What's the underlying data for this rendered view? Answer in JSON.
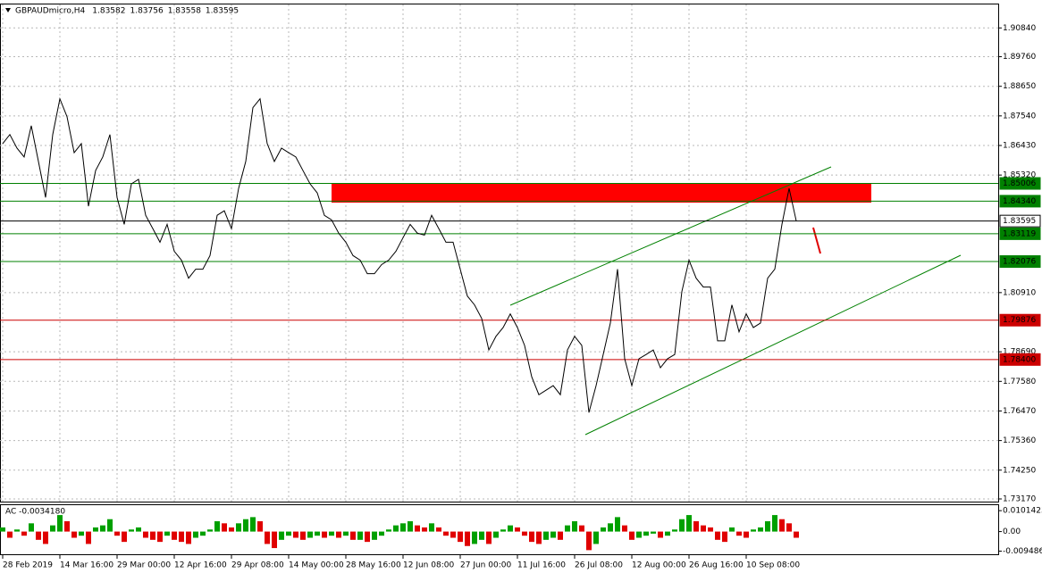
{
  "chart_data": [
    {
      "type": "line",
      "symbol": "GBPAUDmicro,H4",
      "ohlc": [
        1.83582,
        1.83756,
        1.83558,
        1.83595
      ],
      "color": "#000000",
      "grid": true,
      "categories": [
        "28 Feb 2019",
        null,
        null,
        null,
        null,
        null,
        null,
        null,
        "14 Mar 16:00",
        null,
        null,
        null,
        null,
        null,
        null,
        null,
        "29 Mar 00:00",
        null,
        null,
        null,
        null,
        null,
        null,
        null,
        "12 Apr 16:00",
        null,
        null,
        null,
        null,
        null,
        null,
        null,
        "29 Apr 08:00",
        null,
        null,
        null,
        null,
        null,
        null,
        null,
        "14 May 00:00",
        null,
        null,
        null,
        null,
        null,
        null,
        null,
        "28 May 16:00",
        null,
        null,
        null,
        null,
        null,
        null,
        null,
        "12 Jun 08:00",
        null,
        null,
        null,
        null,
        null,
        null,
        null,
        "27 Jun 00:00",
        null,
        null,
        null,
        null,
        null,
        null,
        null,
        "11 Jul 16:00",
        null,
        null,
        null,
        null,
        null,
        null,
        null,
        "26 Jul 08:00",
        null,
        null,
        null,
        null,
        null,
        null,
        null,
        "12 Aug 00:00",
        null,
        null,
        null,
        null,
        null,
        null,
        null,
        "26 Aug 16:00",
        null,
        null,
        null,
        null,
        null,
        null,
        null,
        "10 Sep 08:00",
        null,
        null,
        null,
        null,
        null,
        null,
        null
      ],
      "values": [
        1.865,
        1.8684,
        1.8633,
        1.86,
        1.8717,
        1.8583,
        1.8448,
        1.8684,
        1.8818,
        1.8751,
        1.8616,
        1.865,
        1.8415,
        1.8549,
        1.86,
        1.8684,
        1.8448,
        1.8347,
        1.8499,
        1.8516,
        1.8381,
        1.8331,
        1.828,
        1.8347,
        1.8246,
        1.8213,
        1.8145,
        1.8179,
        1.8179,
        1.823,
        1.8381,
        1.8398,
        1.8331,
        1.8482,
        1.8583,
        1.8785,
        1.8818,
        1.865,
        1.8583,
        1.8633,
        1.8616,
        1.86,
        1.8549,
        1.8499,
        1.8465,
        1.8381,
        1.8364,
        1.8314,
        1.828,
        1.823,
        1.8213,
        1.8162,
        1.8162,
        1.8196,
        1.8213,
        1.8246,
        1.8297,
        1.8347,
        1.8314,
        1.8307,
        1.8381,
        1.8331,
        1.828,
        1.828,
        1.8179,
        1.8078,
        1.8045,
        1.7994,
        1.7876,
        1.7927,
        1.796,
        1.8011,
        1.796,
        1.7893,
        1.7775,
        1.7708,
        1.7725,
        1.7742,
        1.7708,
        1.7876,
        1.7927,
        1.7893,
        1.7641,
        1.7742,
        1.7859,
        1.7977,
        1.8179,
        1.7843,
        1.7742,
        1.7843,
        1.7859,
        1.7876,
        1.7809,
        1.7843,
        1.7859,
        1.8095,
        1.8213,
        1.8145,
        1.8112,
        1.8112,
        1.791,
        1.791,
        1.8045,
        1.7944,
        1.8011,
        1.796,
        1.7977,
        1.8145,
        1.8179,
        1.8347,
        1.8482,
        1.836
      ],
      "ylim": [
        1.7307,
        1.9172
      ],
      "yticks": [
        {
          "value": 1.9084,
          "label": "1.90840"
        },
        {
          "value": 1.8976,
          "label": "1.89760"
        },
        {
          "value": 1.8865,
          "label": "1.88650"
        },
        {
          "value": 1.8754,
          "label": "1.87540"
        },
        {
          "value": 1.8643,
          "label": "1.86430"
        },
        {
          "value": 1.8532,
          "label": "1.85320"
        },
        {
          "value": 1.8091,
          "label": "1.80910"
        },
        {
          "value": 1.7869,
          "label": "1.78690"
        },
        {
          "value": 1.7758,
          "label": "1.77580"
        },
        {
          "value": 1.7647,
          "label": "1.76470"
        },
        {
          "value": 1.7536,
          "label": "1.75360"
        },
        {
          "value": 1.7425,
          "label": "1.74250"
        },
        {
          "value": 1.7317,
          "label": "1.73170"
        }
      ],
      "levels": [
        {
          "value": 1.85006,
          "label": "1.85006",
          "color": "#008000"
        },
        {
          "value": 1.8434,
          "label": "1.84340",
          "color": "#008000"
        },
        {
          "value": 1.83595,
          "label": "1.83595",
          "color": "#000000"
        },
        {
          "value": 1.83119,
          "label": "1.83119",
          "color": "#008000"
        },
        {
          "value": 1.82076,
          "label": "1.82076",
          "color": "#008000"
        },
        {
          "value": 1.79876,
          "label": "1.79876",
          "color": "#cc0000"
        },
        {
          "value": 1.784,
          "label": "1.78400",
          "color": "#cc0000"
        }
      ]
    },
    {
      "type": "bar",
      "title": "AC -0.0034180",
      "up_color": "#00a000",
      "down_color": "#e00000",
      "values": [
        0.002,
        -0.003,
        0.001,
        -0.002,
        0.004,
        -0.004,
        -0.006,
        0.003,
        0.008,
        0.005,
        -0.003,
        -0.002,
        -0.006,
        0.002,
        0.003,
        0.006,
        -0.002,
        -0.005,
        0.001,
        0.002,
        -0.003,
        -0.004,
        -0.005,
        -0.002,
        -0.004,
        -0.005,
        -0.006,
        -0.003,
        -0.002,
        0.001,
        0.005,
        0.004,
        0.002,
        0.004,
        0.006,
        0.007,
        0.005,
        -0.006,
        -0.008,
        -0.004,
        -0.002,
        -0.003,
        -0.004,
        -0.003,
        -0.002,
        -0.003,
        -0.002,
        -0.003,
        -0.002,
        -0.004,
        -0.004,
        -0.005,
        -0.004,
        -0.002,
        0.001,
        0.003,
        0.004,
        0.005,
        0.003,
        0.002,
        0.004,
        0.002,
        -0.002,
        -0.003,
        -0.005,
        -0.007,
        -0.006,
        -0.004,
        -0.006,
        -0.003,
        0.001,
        0.003,
        0.002,
        -0.002,
        -0.005,
        -0.006,
        -0.004,
        -0.003,
        -0.004,
        0.003,
        0.005,
        0.003,
        -0.009,
        -0.006,
        0.002,
        0.004,
        0.007,
        0.003,
        -0.004,
        -0.003,
        -0.002,
        -0.001,
        -0.003,
        -0.002,
        0.001,
        0.006,
        0.008,
        0.005,
        0.003,
        0.002,
        -0.004,
        -0.005,
        0.002,
        -0.002,
        -0.003,
        0.001,
        0.002,
        0.005,
        0.008,
        0.006,
        0.004,
        -0.003
      ],
      "ylim": [
        -0.011,
        0.0128
      ],
      "yticks": [
        0.0101425,
        {
          "value": 0,
          "label": "0.00"
        },
        -0.009486
      ]
    }
  ]
}
